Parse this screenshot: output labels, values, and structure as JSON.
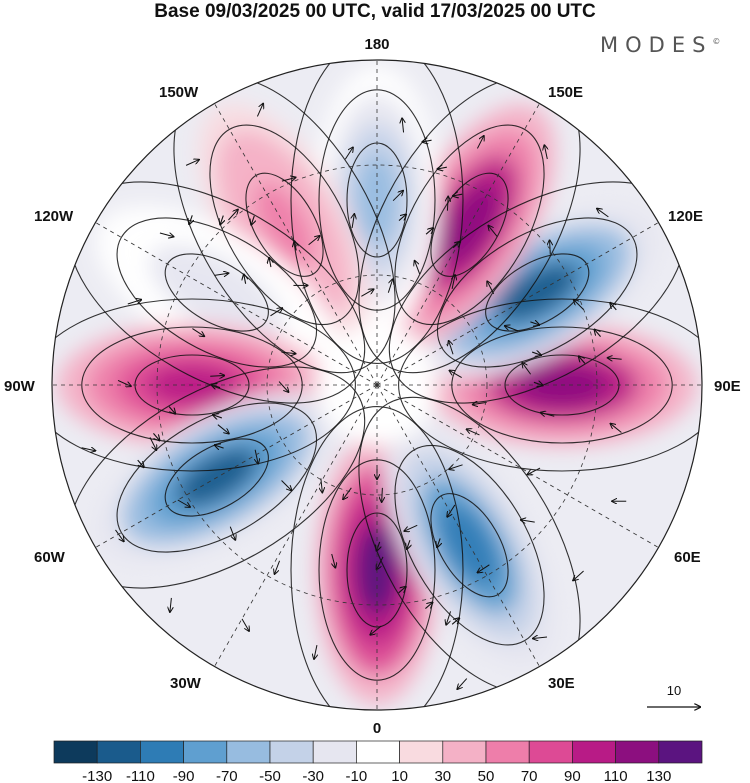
{
  "title": "Base 09/03/2025 00 UTC, valid 17/03/2025 00 UTC",
  "brand": "MODES",
  "brand_mark": "©",
  "map": {
    "projection": "north polar stereographic",
    "longitude_labels": {
      "top": "180",
      "bottom": "0",
      "left": "90W",
      "right": "90E",
      "upper_left_1": "150W",
      "upper_left_2": "120W",
      "lower_left_1": "60W",
      "lower_left_2": "30W",
      "upper_right_1": "150E",
      "upper_right_2": "120E",
      "lower_right_1": "60E",
      "lower_right_2": "30E"
    },
    "vector_reference": "10",
    "anomaly_centres": [
      {
        "lon_label": "0",
        "sign": "positive",
        "peak": 130
      },
      {
        "lon_label": "30E",
        "sign": "negative",
        "peak": -110
      },
      {
        "lon_label": "90E",
        "sign": "positive",
        "peak": 110
      },
      {
        "lon_label": "120E",
        "sign": "negative",
        "peak": -130
      },
      {
        "lon_label": "150E",
        "sign": "positive",
        "peak": 110
      },
      {
        "lon_label": "180",
        "sign": "negative",
        "peak": -70
      },
      {
        "lon_label": "150W",
        "sign": "positive",
        "peak": 50
      },
      {
        "lon_label": "120W",
        "sign": "negative",
        "peak": -30
      },
      {
        "lon_label": "90W",
        "sign": "positive",
        "peak": 90
      },
      {
        "lon_label": "60W",
        "sign": "negative",
        "peak": -130
      }
    ]
  },
  "colorbar": {
    "colors": [
      "#0d3a5c",
      "#1a5b8c",
      "#2e7cb5",
      "#5f9fd0",
      "#97bce0",
      "#c4d2e8",
      "#e6e6f0",
      "#ffffff",
      "#f9dbe0",
      "#f4b1c6",
      "#ee7eaa",
      "#dd4a95",
      "#b81b86",
      "#8c0f7f",
      "#5b1480"
    ],
    "labels": [
      "-130",
      "-110",
      "-90",
      "-70",
      "-50",
      "-30",
      "-10",
      "10",
      "30",
      "50",
      "70",
      "90",
      "110",
      "130"
    ]
  }
}
